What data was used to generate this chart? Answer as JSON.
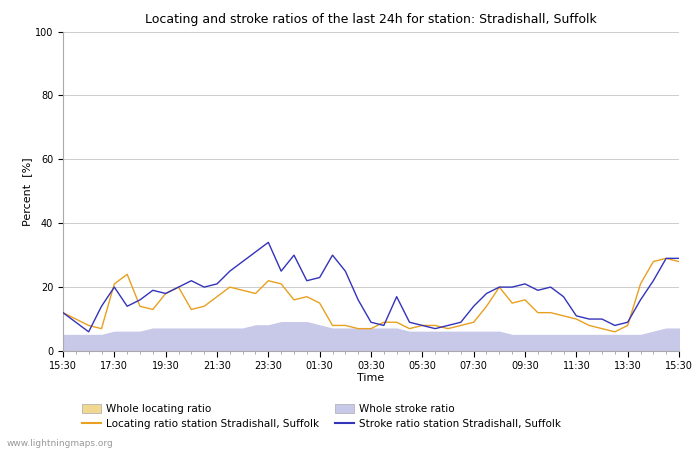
{
  "title": "Locating and stroke ratios of the last 24h for station: Stradishall, Suffolk",
  "xlabel": "Time",
  "ylabel": "Percent  [%]",
  "ylim": [
    0,
    100
  ],
  "bg_color": "#ffffff",
  "plot_bg_color": "#ffffff",
  "grid_color": "#cccccc",
  "watermark": "www.lightningmaps.org",
  "locating_line_color": "#e8a020",
  "stroke_line_color": "#3333bb",
  "whole_locating_fill_color": "#f0d890",
  "whole_stroke_fill_color": "#c8c8e8",
  "legend_labels": [
    "Whole locating ratio",
    "Locating ratio station Stradishall, Suffolk",
    "Whole stroke ratio",
    "Stroke ratio station Stradishall, Suffolk"
  ],
  "xtick_labels": [
    "15:30",
    "17:30",
    "19:30",
    "21:30",
    "23:30",
    "01:30",
    "03:30",
    "05:30",
    "07:30",
    "09:30",
    "11:30",
    "13:30",
    "15:30"
  ],
  "ytick_values": [
    0,
    20,
    40,
    60,
    80,
    100
  ],
  "time_points": [
    0,
    1,
    2,
    3,
    4,
    5,
    6,
    7,
    8,
    9,
    10,
    11,
    12,
    13,
    14,
    15,
    16,
    17,
    18,
    19,
    20,
    21,
    22,
    23,
    24,
    25,
    26,
    27,
    28,
    29,
    30,
    31,
    32,
    33,
    34,
    35,
    36,
    37,
    38,
    39,
    40,
    41,
    42,
    43,
    44,
    45,
    46,
    47,
    48
  ],
  "locating_station": [
    12,
    10,
    8,
    7,
    21,
    24,
    14,
    13,
    18,
    20,
    13,
    14,
    17,
    20,
    19,
    18,
    22,
    21,
    16,
    17,
    15,
    8,
    8,
    7,
    7,
    9,
    9,
    7,
    8,
    8,
    7,
    8,
    9,
    14,
    20,
    15,
    16,
    12,
    12,
    11,
    10,
    8,
    7,
    6,
    8,
    21,
    28,
    29,
    28
  ],
  "stroke_station": [
    12,
    9,
    6,
    14,
    20,
    14,
    16,
    19,
    18,
    20,
    22,
    20,
    21,
    25,
    28,
    31,
    34,
    25,
    30,
    22,
    23,
    30,
    25,
    16,
    9,
    8,
    17,
    9,
    8,
    7,
    8,
    9,
    14,
    18,
    20,
    20,
    21,
    19,
    20,
    17,
    11,
    10,
    10,
    8,
    9,
    16,
    22,
    29,
    29
  ],
  "whole_locating": [
    1,
    1,
    1,
    1,
    2,
    2,
    2,
    2,
    2,
    2,
    2,
    2,
    2,
    3,
    3,
    4,
    5,
    5,
    6,
    7,
    6,
    5,
    4,
    4,
    3,
    3,
    3,
    3,
    2,
    3,
    3,
    3,
    3,
    3,
    3,
    3,
    3,
    3,
    3,
    3,
    3,
    3,
    3,
    3,
    3,
    3,
    4,
    5,
    5
  ],
  "whole_stroke": [
    5,
    5,
    5,
    5,
    6,
    6,
    6,
    7,
    7,
    7,
    7,
    7,
    7,
    7,
    7,
    8,
    8,
    9,
    9,
    9,
    8,
    7,
    7,
    7,
    7,
    7,
    7,
    6,
    6,
    6,
    6,
    6,
    6,
    6,
    6,
    5,
    5,
    5,
    5,
    5,
    5,
    5,
    5,
    5,
    5,
    5,
    6,
    7,
    7
  ]
}
